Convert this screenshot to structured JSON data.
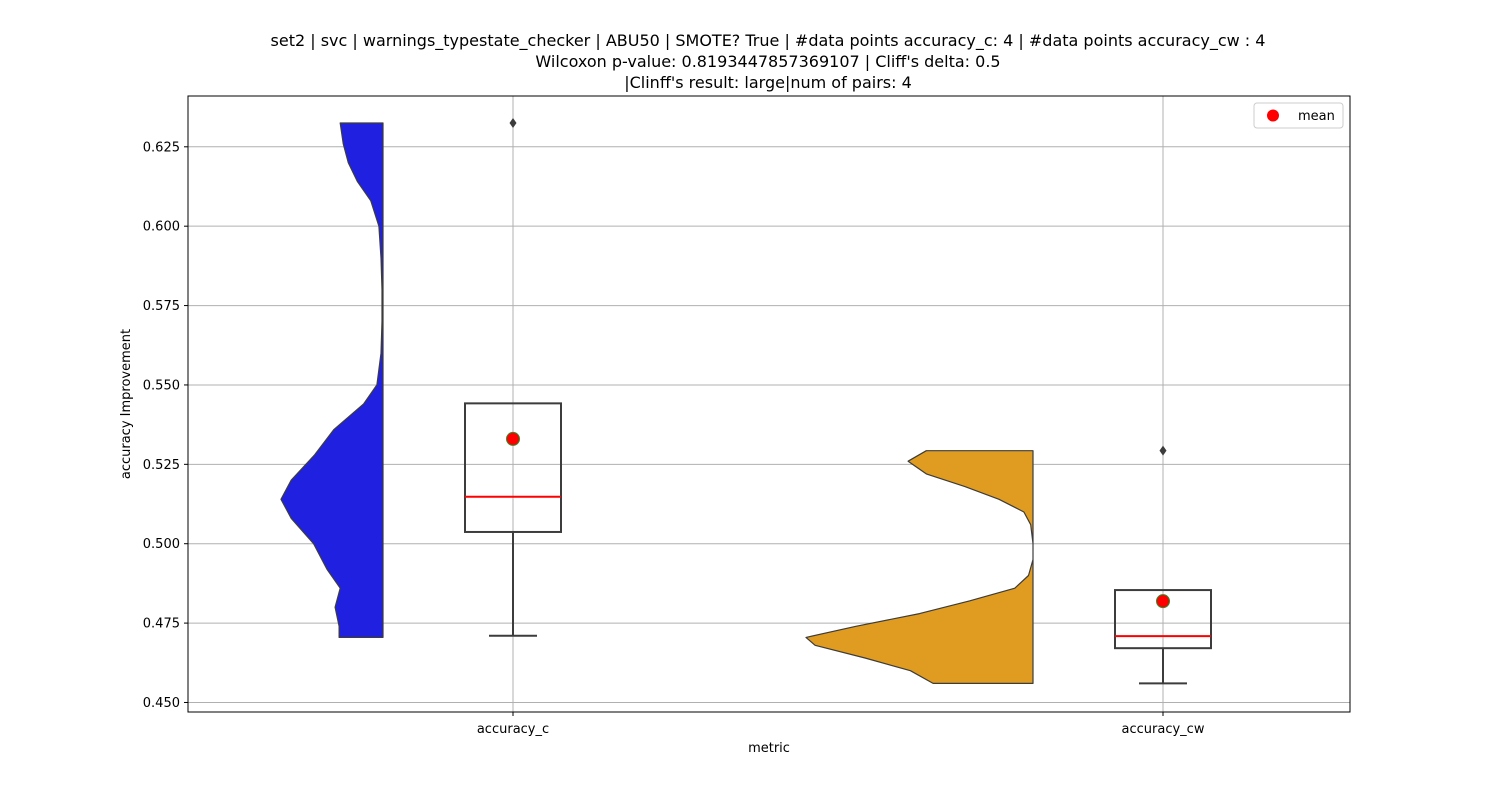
{
  "chart_data": {
    "type": "violin",
    "title_lines": [
      "set2 | svc | warnings_typestate_checker | ABU50 | SMOTE? True | #data points accuracy_c: 4 | #data points accuracy_cw : 4",
      "Wilcoxon p-value: 0.8193447857369107 | Cliff's delta: 0.5",
      "|Clinff's result: large|num of pairs: 4"
    ],
    "xlabel": "metric",
    "ylabel": "accuracy Improvement",
    "ylim": [
      0.447,
      0.641
    ],
    "yticks": [
      0.45,
      0.475,
      0.5,
      0.525,
      0.55,
      0.575,
      0.6,
      0.625
    ],
    "ytick_labels": [
      "0.450",
      "0.475",
      "0.500",
      "0.525",
      "0.550",
      "0.575",
      "0.600",
      "0.625"
    ],
    "grid": true,
    "legend": {
      "position": "top-right",
      "entries": [
        {
          "label": "mean",
          "color": "#ff0000"
        }
      ]
    },
    "categories": [
      "accuracy_c",
      "accuracy_cw"
    ],
    "groups": [
      {
        "name": "accuracy_c",
        "color": "#2020e0",
        "violin_side": "left",
        "violin_range": [
          0.4705,
          0.6325
        ],
        "density_profile": [
          [
            0.4705,
            0.43
          ],
          [
            0.474,
            0.43
          ],
          [
            0.48,
            0.47
          ],
          [
            0.486,
            0.42
          ],
          [
            0.492,
            0.55
          ],
          [
            0.5,
            0.68
          ],
          [
            0.508,
            0.9
          ],
          [
            0.514,
            1.0
          ],
          [
            0.52,
            0.9
          ],
          [
            0.528,
            0.67
          ],
          [
            0.536,
            0.48
          ],
          [
            0.544,
            0.19
          ],
          [
            0.55,
            0.06
          ],
          [
            0.56,
            0.02
          ],
          [
            0.57,
            0.01
          ],
          [
            0.58,
            0.01
          ],
          [
            0.59,
            0.02
          ],
          [
            0.6,
            0.04
          ],
          [
            0.608,
            0.12
          ],
          [
            0.614,
            0.25
          ],
          [
            0.62,
            0.34
          ],
          [
            0.626,
            0.39
          ],
          [
            0.6325,
            0.42
          ]
        ],
        "box": {
          "whisker_low": 0.471,
          "q1": 0.5037,
          "median": 0.5148,
          "q3": 0.5442,
          "whisker_high": 0.5442
        },
        "outliers": [
          0.6325
        ],
        "mean": 0.533
      },
      {
        "name": "accuracy_cw",
        "color": "#e09c20",
        "violin_side": "left",
        "violin_range": [
          0.456,
          0.5293
        ],
        "density_profile": [
          [
            0.456,
            0.44
          ],
          [
            0.46,
            0.54
          ],
          [
            0.464,
            0.74
          ],
          [
            0.468,
            0.96
          ],
          [
            0.4705,
            1.0
          ],
          [
            0.474,
            0.78
          ],
          [
            0.478,
            0.5
          ],
          [
            0.482,
            0.28
          ],
          [
            0.486,
            0.08
          ],
          [
            0.49,
            0.02
          ],
          [
            0.495,
            0.0
          ],
          [
            0.5,
            0.0
          ],
          [
            0.506,
            0.01
          ],
          [
            0.51,
            0.04
          ],
          [
            0.514,
            0.15
          ],
          [
            0.518,
            0.3
          ],
          [
            0.522,
            0.47
          ],
          [
            0.526,
            0.55
          ],
          [
            0.5293,
            0.47
          ]
        ],
        "box": {
          "whisker_low": 0.456,
          "q1": 0.4671,
          "median": 0.4709,
          "q3": 0.4854,
          "whisker_high": 0.4854
        },
        "outliers": [
          0.5293
        ],
        "mean": 0.4819
      }
    ]
  }
}
